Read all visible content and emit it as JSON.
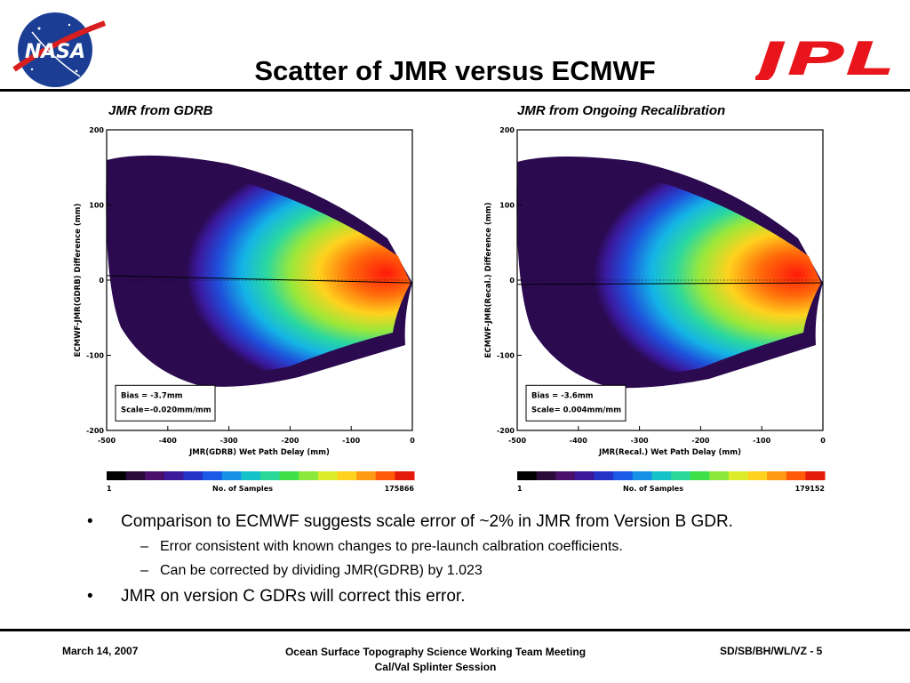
{
  "slide": {
    "title": "Scatter of JMR versus ECMWF",
    "logos": {
      "left": {
        "icon": "nasa-meatball-logo",
        "text": "NASA"
      },
      "right": {
        "icon": "jpl-logo",
        "text": "JPL",
        "color": "#e8161c"
      }
    }
  },
  "colorbar_colors": [
    "#000000",
    "#2b0a3a",
    "#4a0f6a",
    "#3a1a9a",
    "#2432c8",
    "#1a5ae6",
    "#1592e6",
    "#14c2c8",
    "#2ad89a",
    "#3ee04a",
    "#8ce83a",
    "#dcec2a",
    "#ffd21e",
    "#ff9a14",
    "#ff5a0a",
    "#e61a0a"
  ],
  "chart_data": [
    {
      "type": "heatmap",
      "title": "JMR from GDRB",
      "xlabel": "JMR(GDRB) Wet Path Delay (mm)",
      "ylabel": "ECMWF-JMR(GDRB) Difference (mm)",
      "xlim": [
        -500,
        0
      ],
      "ylim": [
        -200,
        200
      ],
      "x_ticks": [
        "-500",
        "-400",
        "-300",
        "-200",
        "-100",
        "0"
      ],
      "y_ticks": [
        "200",
        "100",
        "0",
        "-100",
        "-200"
      ],
      "fit_line": [
        {
          "x": -500,
          "y": 6
        },
        {
          "x": 0,
          "y": -3.7
        }
      ],
      "annotation": [
        "Bias = -3.7mm",
        "Scale=-0.020mm/mm"
      ],
      "colorbar": {
        "min": "1",
        "max": "175866",
        "label": "No. of Samples"
      }
    },
    {
      "type": "heatmap",
      "title": "JMR from Ongoing Recalibration",
      "xlabel": "JMR(Recal.) Wet Path Delay (mm)",
      "ylabel": "ECMWF-JMR(Recal.) Difference (mm)",
      "xlim": [
        -500,
        0
      ],
      "ylim": [
        -200,
        200
      ],
      "x_ticks": [
        "-500",
        "-400",
        "-300",
        "-200",
        "-100",
        "0"
      ],
      "y_ticks": [
        "200",
        "100",
        "0",
        "-100",
        "-200"
      ],
      "fit_line": [
        {
          "x": -500,
          "y": -5.6
        },
        {
          "x": 0,
          "y": -3.6
        }
      ],
      "annotation": [
        "Bias = -3.6mm",
        "Scale= 0.004mm/mm"
      ],
      "colorbar": {
        "min": "1",
        "max": "179152",
        "label": "No. of Samples"
      }
    }
  ],
  "bullets": [
    {
      "level": 1,
      "marker": "•",
      "text": "Comparison to ECMWF suggests scale error  of ~2% in JMR from Version B GDR."
    },
    {
      "level": 2,
      "marker": "–",
      "text": "Error consistent with known changes to pre-launch calbration coefficients."
    },
    {
      "level": 2,
      "marker": "–",
      "text": "Can be corrected by dividing JMR(GDRB) by 1.023"
    },
    {
      "level": 1,
      "marker": "•",
      "text": "JMR on version C GDRs will correct this error."
    }
  ],
  "footer": {
    "date": "March 14, 2007",
    "meeting_line1": "Ocean Surface Topography Science Working Team Meeting",
    "meeting_line2": "Cal/Val Splinter Session",
    "code": "SD/SB/BH/WL/VZ - 5"
  }
}
